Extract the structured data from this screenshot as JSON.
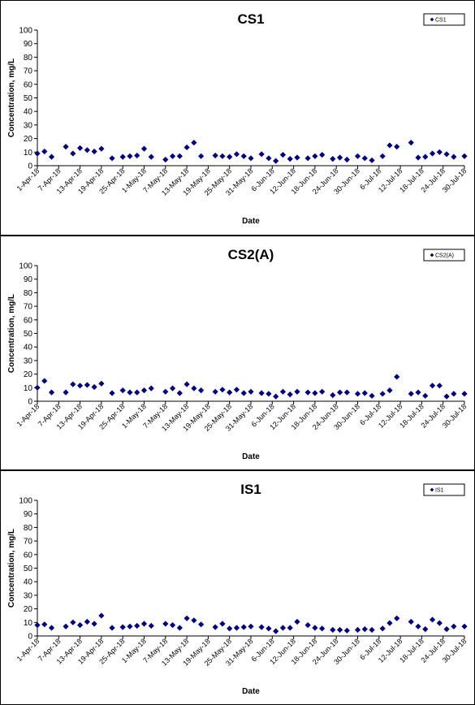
{
  "chart_data": [
    {
      "type": "scatter",
      "title": "CS1",
      "xlabel": "Date",
      "ylabel": "Concentration, mg/L",
      "ylim": [
        0,
        100
      ],
      "yticks": [
        0,
        10,
        20,
        30,
        40,
        50,
        60,
        70,
        80,
        90,
        100
      ],
      "xlim": [
        "2018-04-01",
        "2018-07-30"
      ],
      "xticks": [
        "1-Apr-18",
        "7-Apr-18",
        "13-Apr-18",
        "19-Apr-18",
        "25-Apr-18",
        "1-May-18",
        "7-May-18",
        "13-May-18",
        "19-May-18",
        "25-May-18",
        "31-May-18",
        "6-Jun-18",
        "12-Jun-18",
        "18-Jun-18",
        "24-Jun-18",
        "30-Jun-18",
        "6-Jul-18",
        "12-Jul-18",
        "18-Jul-18",
        "24-Jul-18",
        "30-Jul-18"
      ],
      "legend": "top-right",
      "grid": false,
      "marker_color": "#000080",
      "series": [
        {
          "name": "CS1",
          "x": [
            "2018-04-01",
            "2018-04-03",
            "2018-04-05",
            "2018-04-09",
            "2018-04-11",
            "2018-04-13",
            "2018-04-15",
            "2018-04-17",
            "2018-04-19",
            "2018-04-22",
            "2018-04-25",
            "2018-04-27",
            "2018-04-29",
            "2018-05-01",
            "2018-05-03",
            "2018-05-07",
            "2018-05-09",
            "2018-05-11",
            "2018-05-13",
            "2018-05-15",
            "2018-05-17",
            "2018-05-21",
            "2018-05-23",
            "2018-05-25",
            "2018-05-27",
            "2018-05-29",
            "2018-05-31",
            "2018-06-03",
            "2018-06-05",
            "2018-06-07",
            "2018-06-09",
            "2018-06-11",
            "2018-06-13",
            "2018-06-16",
            "2018-06-18",
            "2018-06-20",
            "2018-06-23",
            "2018-06-25",
            "2018-06-27",
            "2018-06-30",
            "2018-07-02",
            "2018-07-04",
            "2018-07-07",
            "2018-07-09",
            "2018-07-11",
            "2018-07-15",
            "2018-07-17",
            "2018-07-19",
            "2018-07-21",
            "2018-07-23",
            "2018-07-25",
            "2018-07-27",
            "2018-07-30"
          ],
          "y": [
            9,
            10.5,
            6.5,
            14,
            9,
            13,
            11.5,
            10.5,
            12.5,
            5.5,
            6.5,
            7,
            7.5,
            12.5,
            6.5,
            4.5,
            7,
            7,
            13.5,
            17,
            7,
            7.5,
            7,
            6.5,
            8.5,
            7,
            5.5,
            8.5,
            5.5,
            3.5,
            8,
            5,
            6,
            5.5,
            7,
            8,
            5,
            6,
            4.5,
            7,
            5.5,
            4,
            7,
            15,
            14,
            17,
            6,
            6.5,
            9,
            10,
            8.5,
            6.5,
            7
          ]
        }
      ]
    },
    {
      "type": "scatter",
      "title": "CS2(A)",
      "xlabel": "Date",
      "ylabel": "Concentration, mg/L",
      "ylim": [
        0,
        100
      ],
      "yticks": [
        0,
        10,
        20,
        30,
        40,
        50,
        60,
        70,
        80,
        90,
        100
      ],
      "xlim": [
        "2018-04-01",
        "2018-07-30"
      ],
      "xticks": [
        "1-Apr-18",
        "7-Apr-18",
        "13-Apr-18",
        "19-Apr-18",
        "25-Apr-18",
        "1-May-18",
        "7-May-18",
        "13-May-18",
        "19-May-18",
        "25-May-18",
        "31-May-18",
        "6-Jun-18",
        "12-Jun-18",
        "18-Jun-18",
        "24-Jun-18",
        "30-Jun-18",
        "6-Jul-18",
        "12-Jul-18",
        "18-Jul-18",
        "24-Jul-18",
        "30-Jul-18"
      ],
      "legend": "top-right",
      "grid": false,
      "marker_color": "#000080",
      "series": [
        {
          "name": "CS2(A)",
          "x": [
            "2018-04-01",
            "2018-04-03",
            "2018-04-05",
            "2018-04-09",
            "2018-04-11",
            "2018-04-13",
            "2018-04-15",
            "2018-04-17",
            "2018-04-19",
            "2018-04-22",
            "2018-04-25",
            "2018-04-27",
            "2018-04-29",
            "2018-05-01",
            "2018-05-03",
            "2018-05-07",
            "2018-05-09",
            "2018-05-11",
            "2018-05-13",
            "2018-05-15",
            "2018-05-17",
            "2018-05-21",
            "2018-05-23",
            "2018-05-25",
            "2018-05-27",
            "2018-05-29",
            "2018-05-31",
            "2018-06-03",
            "2018-06-05",
            "2018-06-07",
            "2018-06-09",
            "2018-06-11",
            "2018-06-13",
            "2018-06-16",
            "2018-06-18",
            "2018-06-20",
            "2018-06-23",
            "2018-06-25",
            "2018-06-27",
            "2018-06-30",
            "2018-07-02",
            "2018-07-04",
            "2018-07-07",
            "2018-07-09",
            "2018-07-11",
            "2018-07-15",
            "2018-07-17",
            "2018-07-19",
            "2018-07-21",
            "2018-07-23",
            "2018-07-25",
            "2018-07-27",
            "2018-07-30"
          ],
          "y": [
            10,
            15,
            6.5,
            6.5,
            12.5,
            11.5,
            12,
            10.5,
            13,
            6,
            8,
            6.5,
            6.5,
            8,
            9.5,
            7,
            9.5,
            6,
            12.5,
            9.5,
            8,
            7,
            8.5,
            6.5,
            8.5,
            6,
            7,
            6,
            5.5,
            3.5,
            7,
            5,
            7,
            6.5,
            6,
            7,
            4.5,
            6.5,
            6.5,
            5.5,
            6,
            4,
            5.5,
            8,
            18,
            5.5,
            6.5,
            4,
            11.5,
            11.5,
            3.5,
            5.5,
            5.5
          ]
        }
      ]
    },
    {
      "type": "scatter",
      "title": "IS1",
      "xlabel": "Date",
      "ylabel": "Concentration, mg/L",
      "ylim": [
        0,
        100
      ],
      "yticks": [
        0,
        10,
        20,
        30,
        40,
        50,
        60,
        70,
        80,
        90,
        100
      ],
      "xlim": [
        "2018-04-01",
        "2018-07-30"
      ],
      "xticks": [
        "1-Apr-18",
        "7-Apr-18",
        "13-Apr-18",
        "19-Apr-18",
        "25-Apr-18",
        "1-May-18",
        "7-May-18",
        "13-May-18",
        "19-May-18",
        "25-May-18",
        "31-May-18",
        "6-Jun-18",
        "12-Jun-18",
        "18-Jun-18",
        "24-Jun-18",
        "30-Jun-18",
        "6-Jul-18",
        "12-Jul-18",
        "18-Jul-18",
        "24-Jul-18",
        "30-Jul-18"
      ],
      "legend": "top-right",
      "grid": false,
      "marker_color": "#000080",
      "series": [
        {
          "name": "IS1",
          "x": [
            "2018-04-01",
            "2018-04-03",
            "2018-04-05",
            "2018-04-09",
            "2018-04-11",
            "2018-04-13",
            "2018-04-15",
            "2018-04-17",
            "2018-04-19",
            "2018-04-22",
            "2018-04-25",
            "2018-04-27",
            "2018-04-29",
            "2018-05-01",
            "2018-05-03",
            "2018-05-07",
            "2018-05-09",
            "2018-05-11",
            "2018-05-13",
            "2018-05-15",
            "2018-05-17",
            "2018-05-21",
            "2018-05-23",
            "2018-05-25",
            "2018-05-27",
            "2018-05-29",
            "2018-05-31",
            "2018-06-03",
            "2018-06-05",
            "2018-06-07",
            "2018-06-09",
            "2018-06-11",
            "2018-06-13",
            "2018-06-16",
            "2018-06-18",
            "2018-06-20",
            "2018-06-23",
            "2018-06-25",
            "2018-06-27",
            "2018-06-30",
            "2018-07-02",
            "2018-07-04",
            "2018-07-07",
            "2018-07-09",
            "2018-07-11",
            "2018-07-15",
            "2018-07-17",
            "2018-07-19",
            "2018-07-21",
            "2018-07-23",
            "2018-07-25",
            "2018-07-27",
            "2018-07-30"
          ],
          "y": [
            8,
            8.5,
            6,
            7,
            10,
            8,
            10.5,
            9,
            15,
            6,
            6.5,
            7,
            7.5,
            9,
            7.5,
            9,
            8,
            6,
            13,
            11.5,
            8.5,
            6.5,
            9,
            5.5,
            6,
            6.5,
            7,
            6.5,
            5.5,
            3.5,
            6,
            6,
            10.5,
            8,
            6,
            5.5,
            4.5,
            4.5,
            4,
            4.5,
            5,
            4.5,
            5.5,
            9.5,
            13,
            10.5,
            7,
            5,
            12,
            9.5,
            5,
            7,
            7
          ]
        }
      ]
    }
  ]
}
